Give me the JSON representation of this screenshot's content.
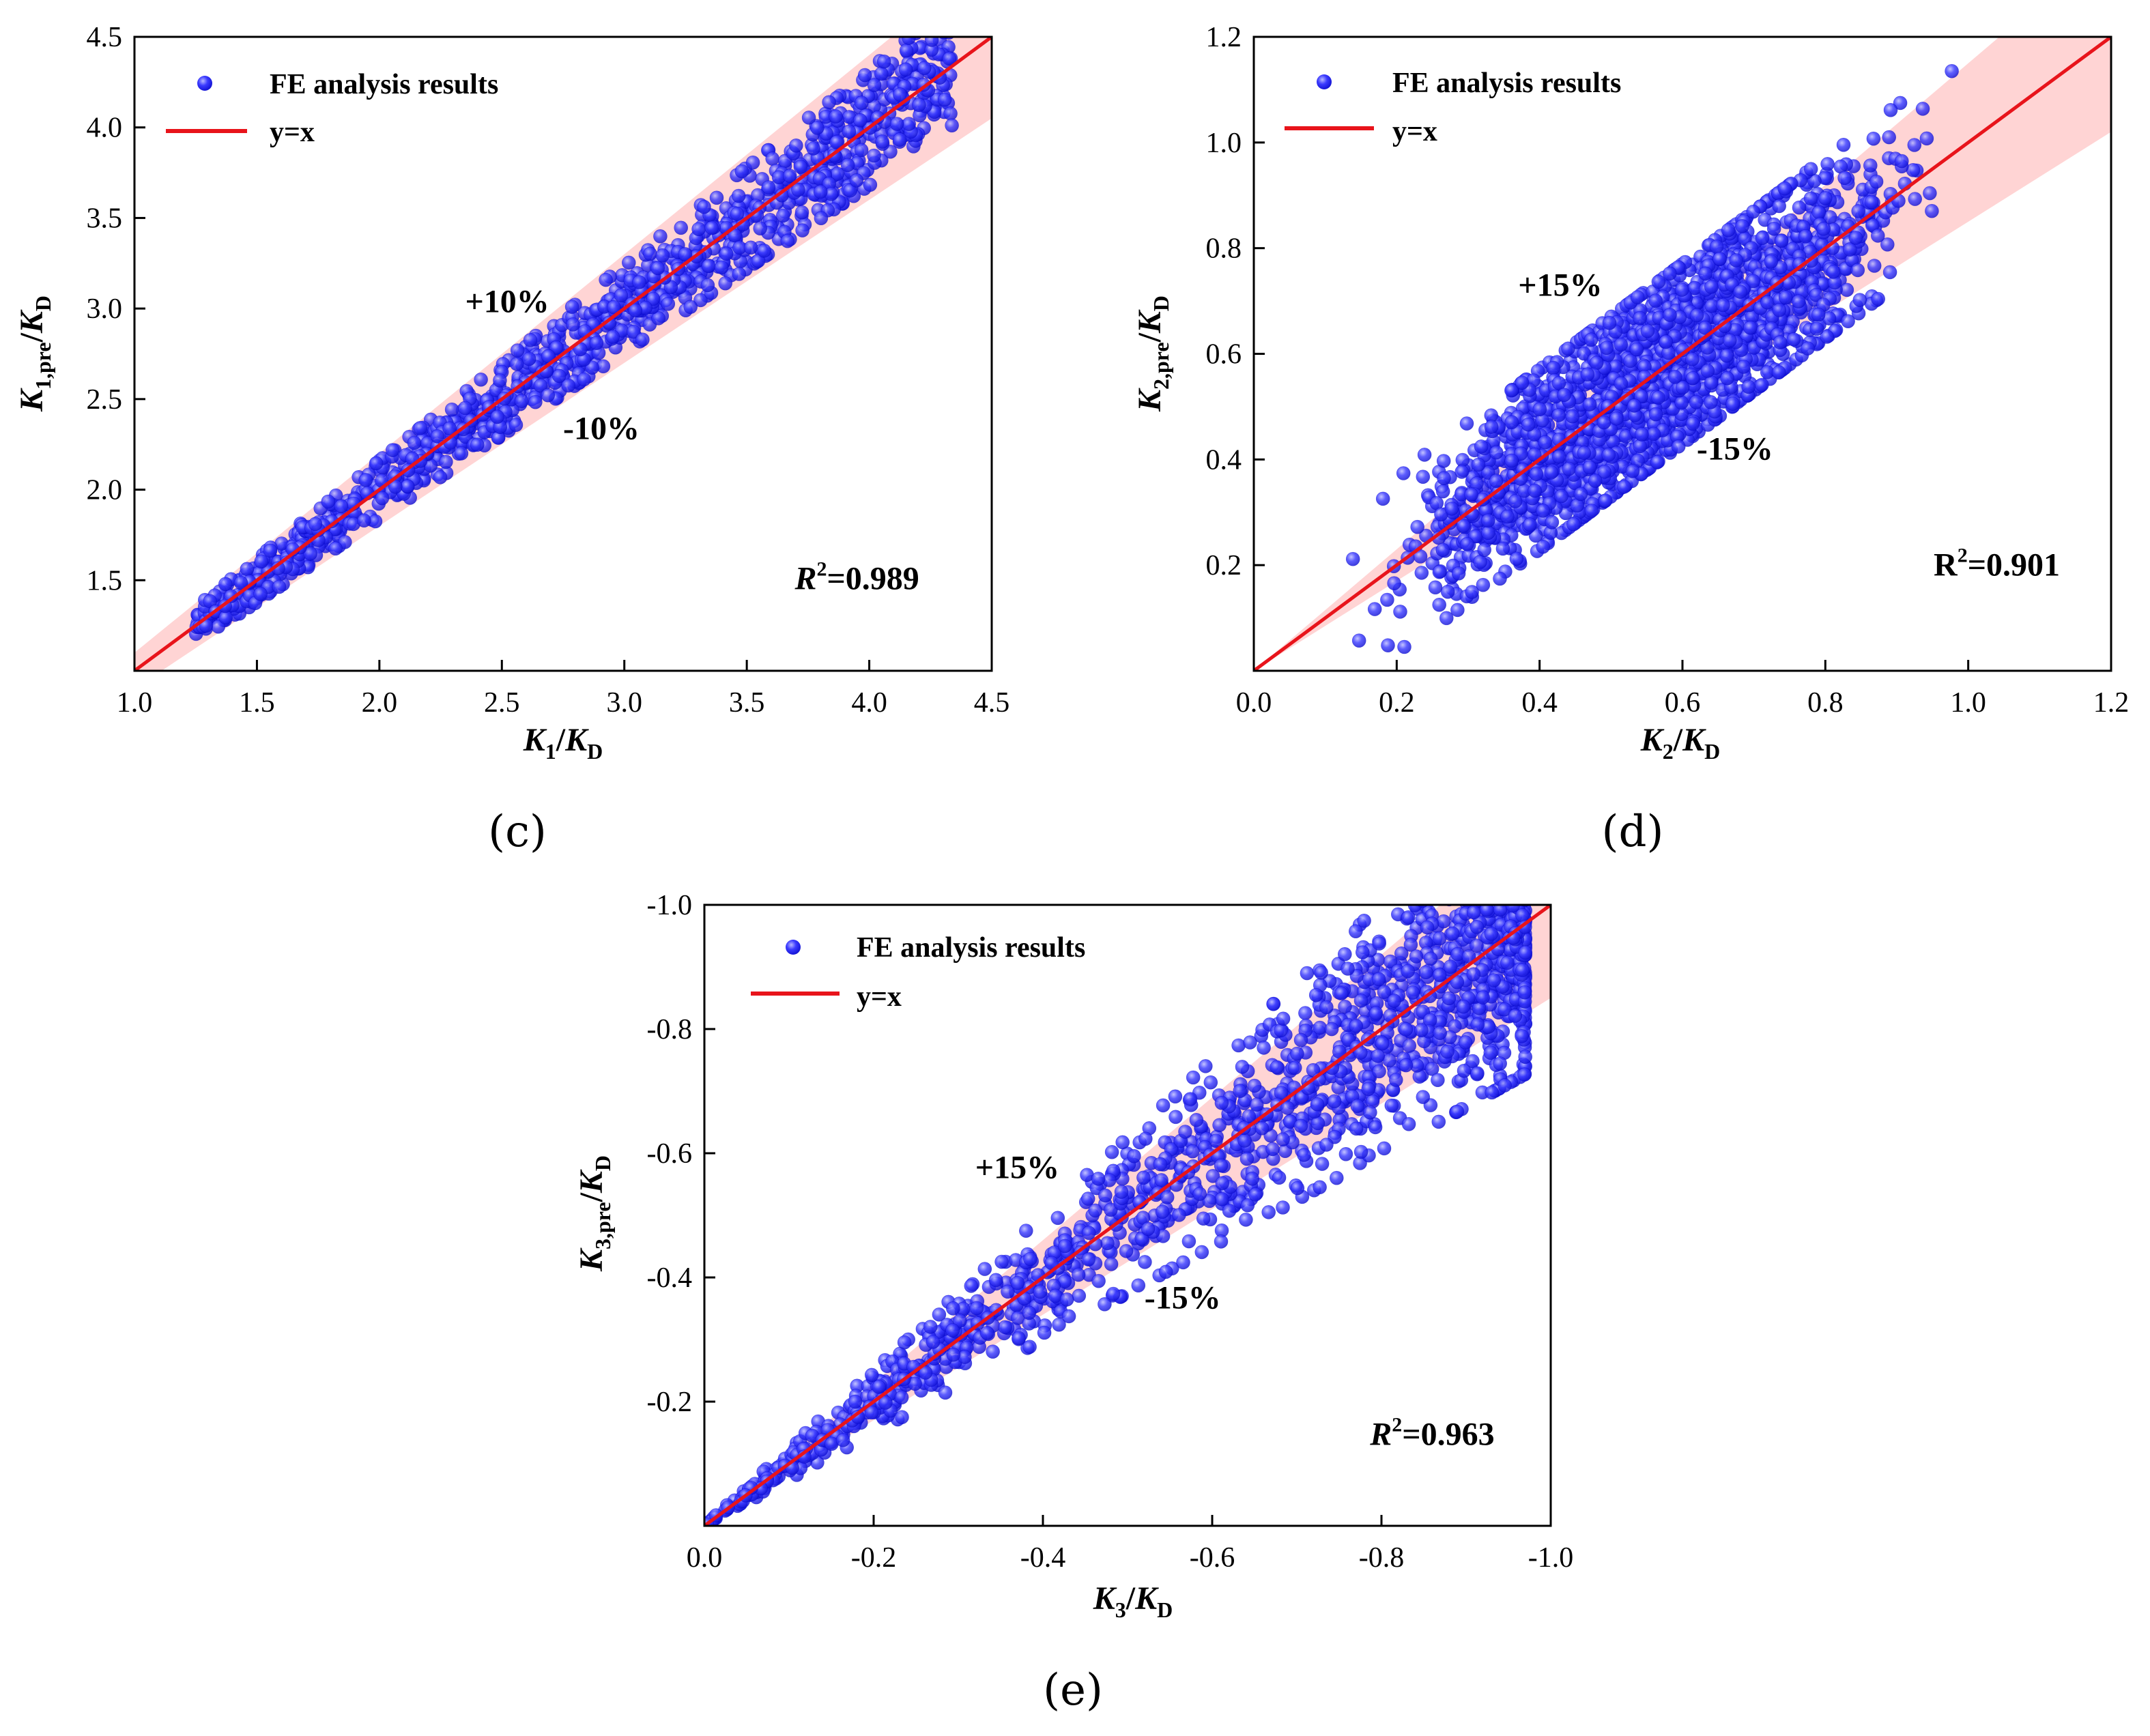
{
  "colors": {
    "points": "#1a1af0",
    "point_edge": "#0000cc",
    "fit_line": "#e8141b",
    "band": "#ffcccc",
    "axes": "#000000"
  },
  "chart_data": [
    {
      "id": "c",
      "type": "scatter",
      "caption": "(c)",
      "xlabel": {
        "var": "K",
        "var_sub": "1",
        "slash": "/",
        "ref": "K",
        "ref_sub": "D"
      },
      "ylabel": {
        "var": "K",
        "var_sub": "1,pre",
        "slash": "/",
        "ref": "K",
        "ref_sub": "D"
      },
      "xlim": [
        1.0,
        4.5
      ],
      "ylim": [
        1.0,
        4.5
      ],
      "xticks": [
        1.0,
        1.5,
        2.0,
        2.5,
        3.0,
        3.5,
        4.0,
        4.5
      ],
      "xtick_labels": [
        "1.0",
        "1.5",
        "2.0",
        "2.5",
        "3.0",
        "3.5",
        "4.0",
        "4.5"
      ],
      "yticks": [
        1.5,
        2.0,
        2.5,
        3.0,
        3.5,
        4.0,
        4.5
      ],
      "ytick_labels": [
        "1.5",
        "2.0",
        "2.5",
        "3.0",
        "3.5",
        "4.0",
        "4.5"
      ],
      "legend": {
        "points": "FE analysis results",
        "line": "y=x"
      },
      "band_pct": 0.1,
      "upper_label": "+10%",
      "upper_label_at": [
        2.35,
        2.98
      ],
      "lower_label": "-10%",
      "lower_label_at": [
        2.75,
        2.28
      ],
      "r2": {
        "var": "R",
        "exp": "2",
        "value": "=0.989",
        "var_italic": true,
        "at": [
          3.95,
          1.45
        ]
      },
      "series_summary": {
        "n": 1200,
        "x_range": [
          1.25,
          4.35
        ],
        "spread_pct": 0.045,
        "max_ratio": 0.08
      }
    },
    {
      "id": "d",
      "type": "scatter",
      "caption": "(d)",
      "xlabel": {
        "var": "K",
        "var_sub": "2",
        "slash": "/",
        "ref": "K",
        "ref_sub": "D"
      },
      "ylabel": {
        "var": "K",
        "var_sub": "2,pre",
        "slash": "/",
        "ref": "K",
        "ref_sub": "D"
      },
      "xlim": [
        0.0,
        1.2
      ],
      "ylim": [
        0.0,
        1.2
      ],
      "xticks": [
        0.0,
        0.2,
        0.4,
        0.6,
        0.8,
        1.0,
        1.2
      ],
      "xtick_labels": [
        "0.0",
        "0.2",
        "0.4",
        "0.6",
        "0.8",
        "1.0",
        "1.2"
      ],
      "yticks": [
        0.2,
        0.4,
        0.6,
        0.8,
        1.0,
        1.2
      ],
      "ytick_labels": [
        "0.2",
        "0.4",
        "0.6",
        "0.8",
        "1.0",
        "1.2"
      ],
      "legend": {
        "points": "FE analysis results",
        "line": "y=x"
      },
      "band_pct": 0.15,
      "upper_label": "+15%",
      "upper_label_at": [
        0.37,
        0.71
      ],
      "lower_label": "-15%",
      "lower_label_at": [
        0.62,
        0.4
      ],
      "r2": {
        "var": "R",
        "exp": "2",
        "value": "=0.901",
        "var_italic": false,
        "at": [
          1.04,
          0.18
        ]
      },
      "series_summary": {
        "n": 2500,
        "x_range": [
          0.13,
          0.99
        ],
        "spread_abs": 0.09,
        "max_abs": 0.17
      }
    },
    {
      "id": "e",
      "type": "scatter",
      "caption": "(e)",
      "xlabel": {
        "var": "K",
        "var_sub": "3",
        "slash": "/",
        "ref": "K",
        "ref_sub": "D"
      },
      "ylabel": {
        "var": "K",
        "var_sub": "3,pre",
        "slash": "/",
        "ref": "K",
        "ref_sub": "D"
      },
      "xlim": [
        0.0,
        -1.0
      ],
      "ylim": [
        0.0,
        -1.0
      ],
      "xticks": [
        0.0,
        -0.2,
        -0.4,
        -0.6,
        -0.8,
        -1.0
      ],
      "xtick_labels": [
        "0.0",
        "-0.2",
        "-0.4",
        "-0.6",
        "-0.8",
        "-1.0"
      ],
      "yticks": [
        -0.2,
        -0.4,
        -0.6,
        -0.8,
        -1.0
      ],
      "ytick_labels": [
        "-0.2",
        "-0.4",
        "-0.6",
        "-0.8",
        "-1.0"
      ],
      "legend": {
        "points": "FE analysis results",
        "line": "y=x"
      },
      "band_pct": 0.15,
      "upper_label": "+15%",
      "upper_label_at": [
        -0.32,
        -0.56
      ],
      "lower_label": "-15%",
      "lower_label_at": [
        -0.52,
        -0.35
      ],
      "r2": {
        "var": "R",
        "exp": "2",
        "value": "=0.963",
        "var_italic": true,
        "at": [
          -0.86,
          -0.13
        ]
      },
      "series_summary": {
        "n": 1600,
        "x_range": [
          0.0,
          -0.97
        ],
        "spread_pct": 0.12,
        "max_ratio": 0.25
      }
    }
  ]
}
